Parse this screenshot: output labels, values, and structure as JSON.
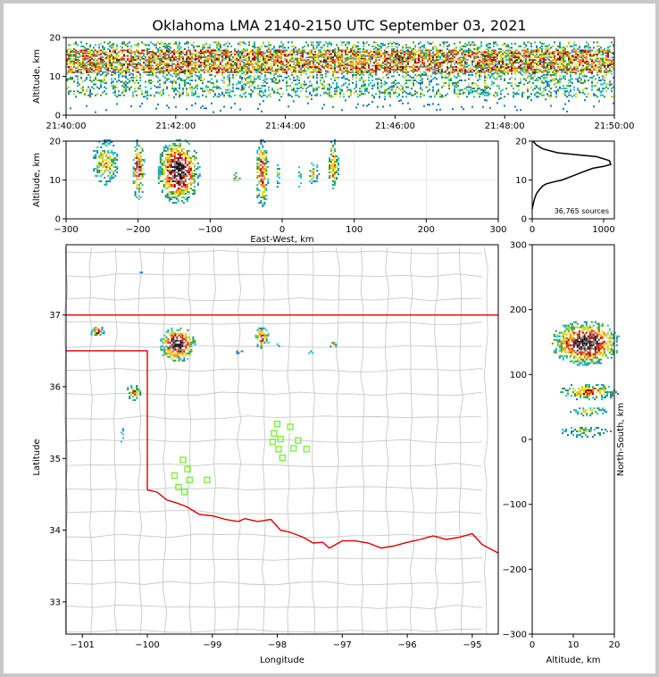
{
  "title": "Oklahoma LMA 2140-2150 UTC September 03, 2021",
  "colors": {
    "density": [
      "#1f77b4",
      "#17becf",
      "#2ca02c",
      "#bcd22a",
      "#ffd700",
      "#ff7f0e",
      "#d62728",
      "#8b0000",
      "#ffffff",
      "#808080",
      "#111111"
    ],
    "state_border": "#dd0000",
    "county_lines": "#c8c8c8",
    "stations": "#77ee33",
    "axes": "#000000"
  },
  "chart_data": [
    {
      "id": "time-height",
      "type": "heatmap",
      "ylabel": "Altitude, km",
      "ylim": [
        0,
        20
      ],
      "yticks": [
        "0",
        "10",
        "20"
      ],
      "xticks": [
        "21:40:00",
        "21:42:00",
        "21:44:00",
        "21:46:00",
        "21:48:00",
        "21:50:00"
      ],
      "xlim_minutes": [
        0,
        10
      ],
      "altitude_band_km": [
        5,
        19
      ],
      "altitude_peak_km": [
        11,
        17
      ]
    },
    {
      "id": "ew-altitude",
      "type": "heatmap",
      "xlabel": "East-West, km",
      "ylabel": "Altitude, km",
      "xlim": [
        -300,
        300
      ],
      "ylim": [
        0,
        20
      ],
      "xticks": [
        "−300",
        "−200",
        "−100",
        "0",
        "100",
        "200",
        "300"
      ],
      "yticks": [
        "0",
        "10",
        "20"
      ],
      "cells": [
        {
          "x": [
            -265,
            -228
          ],
          "z": [
            8,
            20
          ],
          "peak": 0.5
        },
        {
          "x": [
            -210,
            -192
          ],
          "z": [
            4,
            20
          ],
          "peak": 0.75
        },
        {
          "x": [
            -175,
            -115
          ],
          "z": [
            3,
            20
          ],
          "peak": 1.0
        },
        {
          "x": [
            -70,
            -60
          ],
          "z": [
            8,
            12
          ],
          "peak": 0.35
        },
        {
          "x": [
            -38,
            -20
          ],
          "z": [
            2,
            20
          ],
          "peak": 0.75
        },
        {
          "x": [
            -10,
            -4
          ],
          "z": [
            7,
            14
          ],
          "peak": 0.3
        },
        {
          "x": [
            20,
            26
          ],
          "z": [
            7,
            14
          ],
          "peak": 0.3
        },
        {
          "x": [
            35,
            50
          ],
          "z": [
            8,
            14
          ],
          "peak": 0.4
        },
        {
          "x": [
            62,
            78
          ],
          "z": [
            6,
            20
          ],
          "peak": 0.55
        }
      ]
    },
    {
      "id": "altitude-histogram",
      "type": "line",
      "ylim": [
        0,
        20
      ],
      "xlim": [
        0,
        1150
      ],
      "xticks": [
        "0",
        "1000"
      ],
      "yticks": [
        "0",
        "10",
        "20"
      ],
      "annotation": "36,765 sources",
      "x": [
        0,
        10,
        30,
        60,
        100,
        150,
        200,
        300,
        420,
        560,
        700,
        850,
        1000,
        1100,
        1080,
        900,
        620,
        360,
        150,
        60,
        10
      ],
      "y": [
        2.5,
        3.5,
        5,
        6.5,
        7.5,
        8.5,
        9,
        9.5,
        10,
        11,
        12,
        13,
        13.5,
        14,
        15,
        16,
        16.5,
        17,
        18,
        19,
        20
      ]
    },
    {
      "id": "plan-view",
      "type": "heatmap",
      "xlabel": "Longitude",
      "ylabel": "Latitude",
      "xlim": [
        -101.25,
        -94.6
      ],
      "ylim": [
        32.55,
        37.98
      ],
      "xticks": [
        "−101",
        "−100",
        "−99",
        "−98",
        "−97",
        "−96",
        "−95"
      ],
      "yticks": [
        "33",
        "34",
        "35",
        "36",
        "37"
      ],
      "cells": [
        {
          "lon": -100.78,
          "lat": 36.78,
          "rx": 0.12,
          "ry": 0.08,
          "peak": 0.6
        },
        {
          "lon": -100.22,
          "lat": 35.93,
          "rx": 0.12,
          "ry": 0.12,
          "peak": 0.55
        },
        {
          "lon": -99.55,
          "lat": 36.6,
          "rx": 0.28,
          "ry": 0.25,
          "peak": 1.0
        },
        {
          "lon": -98.25,
          "lat": 36.7,
          "rx": 0.12,
          "ry": 0.15,
          "peak": 0.65
        },
        {
          "lon": -97.15,
          "lat": 36.6,
          "rx": 0.07,
          "ry": 0.05,
          "peak": 0.45
        },
        {
          "lon": -97.5,
          "lat": 36.5,
          "rx": 0.05,
          "ry": 0.03,
          "peak": 0.3
        },
        {
          "lon": -100.4,
          "lat": 35.35,
          "rx": 0.04,
          "ry": 0.12,
          "peak": 0.3
        },
        {
          "lon": -98.6,
          "lat": 36.5,
          "rx": 0.06,
          "ry": 0.03,
          "peak": 0.25
        },
        {
          "lon": -98.0,
          "lat": 36.6,
          "rx": 0.04,
          "ry": 0.03,
          "peak": 0.25
        },
        {
          "lon": -100.12,
          "lat": 37.6,
          "rx": 0.03,
          "ry": 0.03,
          "peak": 0.2
        }
      ],
      "stations": [
        [
          -99.45,
          34.98
        ],
        [
          -99.38,
          34.85
        ],
        [
          -99.58,
          34.76
        ],
        [
          -99.35,
          34.7
        ],
        [
          -99.08,
          34.7
        ],
        [
          -99.52,
          34.6
        ],
        [
          -99.43,
          34.53
        ],
        [
          -98.0,
          35.48
        ],
        [
          -97.8,
          35.44
        ],
        [
          -98.05,
          35.35
        ],
        [
          -97.95,
          35.27
        ],
        [
          -98.07,
          35.23
        ],
        [
          -97.68,
          35.25
        ],
        [
          -97.98,
          35.13
        ],
        [
          -97.75,
          35.14
        ],
        [
          -97.55,
          35.13
        ],
        [
          -97.92,
          35.01
        ]
      ]
    },
    {
      "id": "altitude-ns",
      "type": "heatmap",
      "xlabel": "Altitude, km",
      "ylabel": "North-South, km",
      "xlim": [
        0,
        20
      ],
      "ylim": [
        -300,
        300
      ],
      "xticks": [
        "0",
        "10",
        "20"
      ],
      "yticks": [
        "−300",
        "−200",
        "−100",
        "0",
        "100",
        "200",
        "300"
      ],
      "cells": [
        {
          "y": [
            115,
            185
          ],
          "z": [
            3,
            20
          ],
          "peak": 1.0
        },
        {
          "y": [
            62,
            88
          ],
          "z": [
            5,
            20
          ],
          "peak": 0.6
        },
        {
          "y": [
            38,
            52
          ],
          "z": [
            7,
            17
          ],
          "peak": 0.4
        },
        {
          "y": [
            5,
            22
          ],
          "z": [
            5,
            18
          ],
          "peak": 0.3
        }
      ]
    }
  ]
}
